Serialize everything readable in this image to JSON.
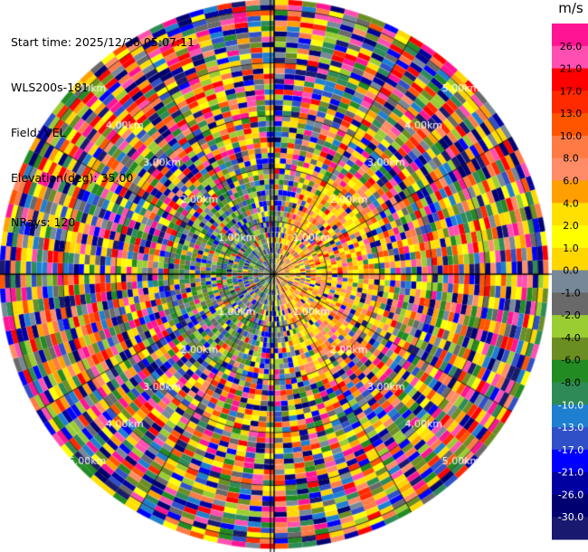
{
  "header": {
    "start_time": "Start time: 2025/12/26 05:07:11",
    "instrument": "WLS200s-181",
    "field": "Field: VEL",
    "elevation": "Elevation(deg): 35.00",
    "nrays": "NRays: 120"
  },
  "chart_data": {
    "type": "heatmap",
    "projection": "polar-ppi",
    "field": "VEL",
    "units": "m/s",
    "n_rays": 120,
    "range_rings_km": [
      1.0,
      2.0,
      3.0,
      4.0,
      5.0
    ],
    "ring_labels": [
      "1.00km",
      "2.00km",
      "3.00km",
      "4.00km",
      "5.00km"
    ],
    "max_range_km": 5.2,
    "gate_km": 0.1,
    "colorbar": {
      "title": "m/s",
      "tick_labels": [
        "26.0",
        "21.0",
        "17.0",
        "13.0",
        "10.0",
        "8.0",
        "6.0",
        "4.0",
        "2.0",
        "1.0",
        "0.0",
        "-1.0",
        "-2.0",
        "-4.0",
        "-6.0",
        "-8.0",
        "-10.0",
        "-13.0",
        "-17.0",
        "-21.0",
        "-26.0",
        "-30.0"
      ],
      "colors": [
        "#ff1493",
        "#ff4fb0",
        "#ff0000",
        "#ff2a00",
        "#ff5400",
        "#ff7a45",
        "#ff8c66",
        "#ffa000",
        "#ffe000",
        "#ffff00",
        "#ffd700",
        "#778899",
        "#696969",
        "#9acd32",
        "#6b8e23",
        "#228b22",
        "#2e8b57",
        "#1e7fd0",
        "#3050c8",
        "#0000ff",
        "#0000a0",
        "#000070",
        "#191970"
      ]
    },
    "pattern": "aliased-noise beyond ~2 km; coherent near-field flow: positive (yellow/orange) to the east, negative (green) to the west"
  }
}
